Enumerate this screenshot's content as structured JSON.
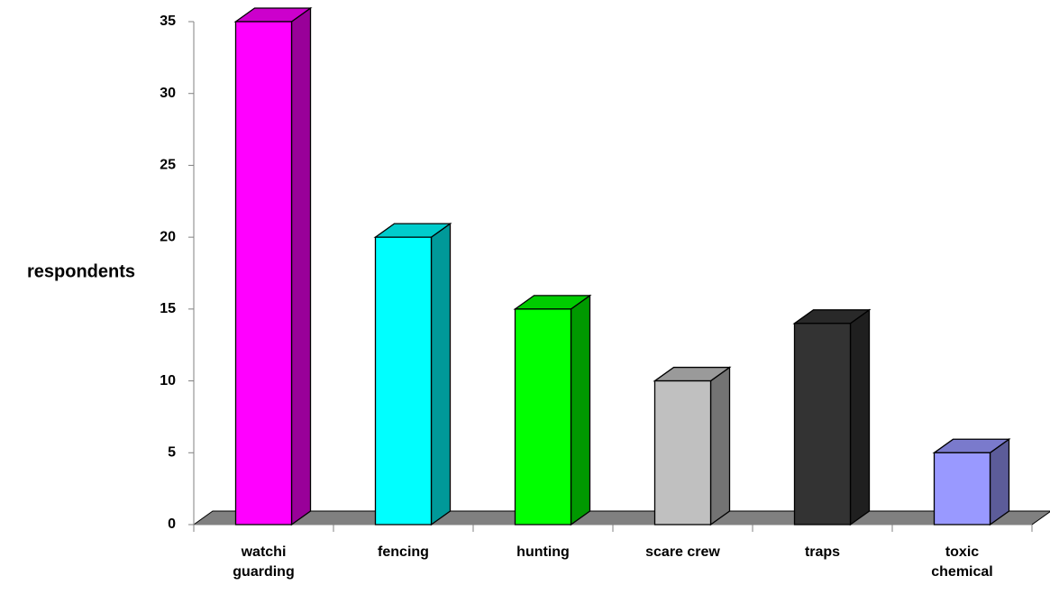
{
  "chart_data": {
    "type": "bar3d",
    "y_label": "respondents",
    "categories": [
      "watchi guarding",
      "fencing",
      "hunting",
      "scare crew",
      "traps",
      "toxic chemical"
    ],
    "values": [
      35,
      20,
      15,
      10,
      14,
      5
    ],
    "colors": [
      "#ff00ff",
      "#00ffff",
      "#00ff00",
      "#c0c0c0",
      "#333333",
      "#9999ff"
    ],
    "ylim": [
      0,
      35
    ],
    "yticks": [
      0,
      5,
      10,
      15,
      20,
      25,
      30,
      35
    ],
    "grid": false
  }
}
